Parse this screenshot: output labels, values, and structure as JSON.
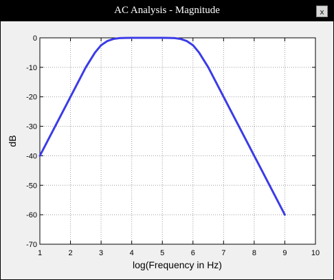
{
  "window": {
    "title": "AC Analysis - Magnitude",
    "close_label": "x"
  },
  "chart_data": {
    "type": "line",
    "title": "",
    "xlabel": "log(Frequency in Hz)",
    "ylabel": "dB",
    "xlim": [
      1,
      10
    ],
    "ylim": [
      -70,
      0
    ],
    "xticks": [
      1,
      2,
      3,
      4,
      5,
      6,
      7,
      8,
      9,
      10
    ],
    "yticks": [
      0,
      -10,
      -20,
      -30,
      -40,
      -50,
      -60,
      -70
    ],
    "grid": true,
    "series": [
      {
        "color": "#3b3be8",
        "x": [
          1,
          1.5,
          2,
          2.5,
          2.8,
          3,
          3.2,
          3.4,
          3.6,
          3.8,
          4,
          4.5,
          5,
          5.2,
          5.4,
          5.6,
          5.8,
          6,
          6.2,
          6.5,
          7,
          7.5,
          8,
          8.5,
          9
        ],
        "y": [
          -40,
          -30,
          -20,
          -10,
          -5,
          -2.5,
          -1.1,
          -0.4,
          -0.1,
          -0.02,
          0,
          0,
          0,
          -0.02,
          -0.1,
          -0.4,
          -1.1,
          -2.5,
          -5,
          -10,
          -20,
          -30,
          -40,
          -50,
          -60
        ]
      }
    ]
  }
}
